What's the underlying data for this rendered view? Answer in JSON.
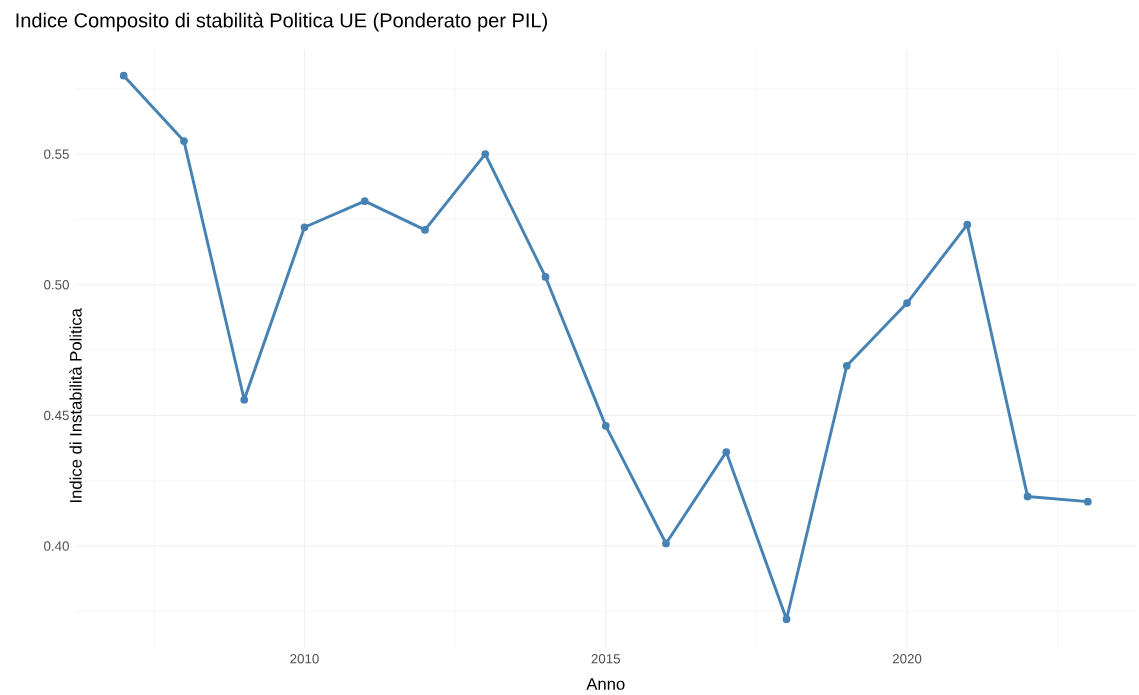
{
  "chart_data": {
    "type": "line",
    "title": "Indice Composito di stabilità Politica UE (Ponderato per PIL)",
    "xlabel": "Anno",
    "ylabel": "Indice di Instabilità Politica",
    "x": [
      2007,
      2008,
      2009,
      2010,
      2011,
      2012,
      2013,
      2014,
      2015,
      2016,
      2017,
      2018,
      2019,
      2020,
      2021,
      2022,
      2023
    ],
    "series": [
      {
        "color": "#4682b4",
        "values": [
          0.58,
          0.555,
          0.456,
          0.522,
          0.532,
          0.521,
          0.55,
          0.503,
          0.446,
          0.401,
          0.436,
          0.372,
          0.469,
          0.493,
          0.523,
          0.419,
          0.417
        ]
      }
    ],
    "xlim": [
      2006.2,
      2023.8
    ],
    "ylim": [
      0.361,
      0.59
    ],
    "xticks": [
      2010,
      2015,
      2020
    ],
    "yticks": [
      {
        "value": 0.4,
        "label": "0.40"
      },
      {
        "value": 0.45,
        "label": "0.45"
      },
      {
        "value": 0.5,
        "label": "0.50"
      },
      {
        "value": 0.55,
        "label": "0.55"
      }
    ],
    "grid": true,
    "marker": "circle",
    "line_style": "solid"
  }
}
